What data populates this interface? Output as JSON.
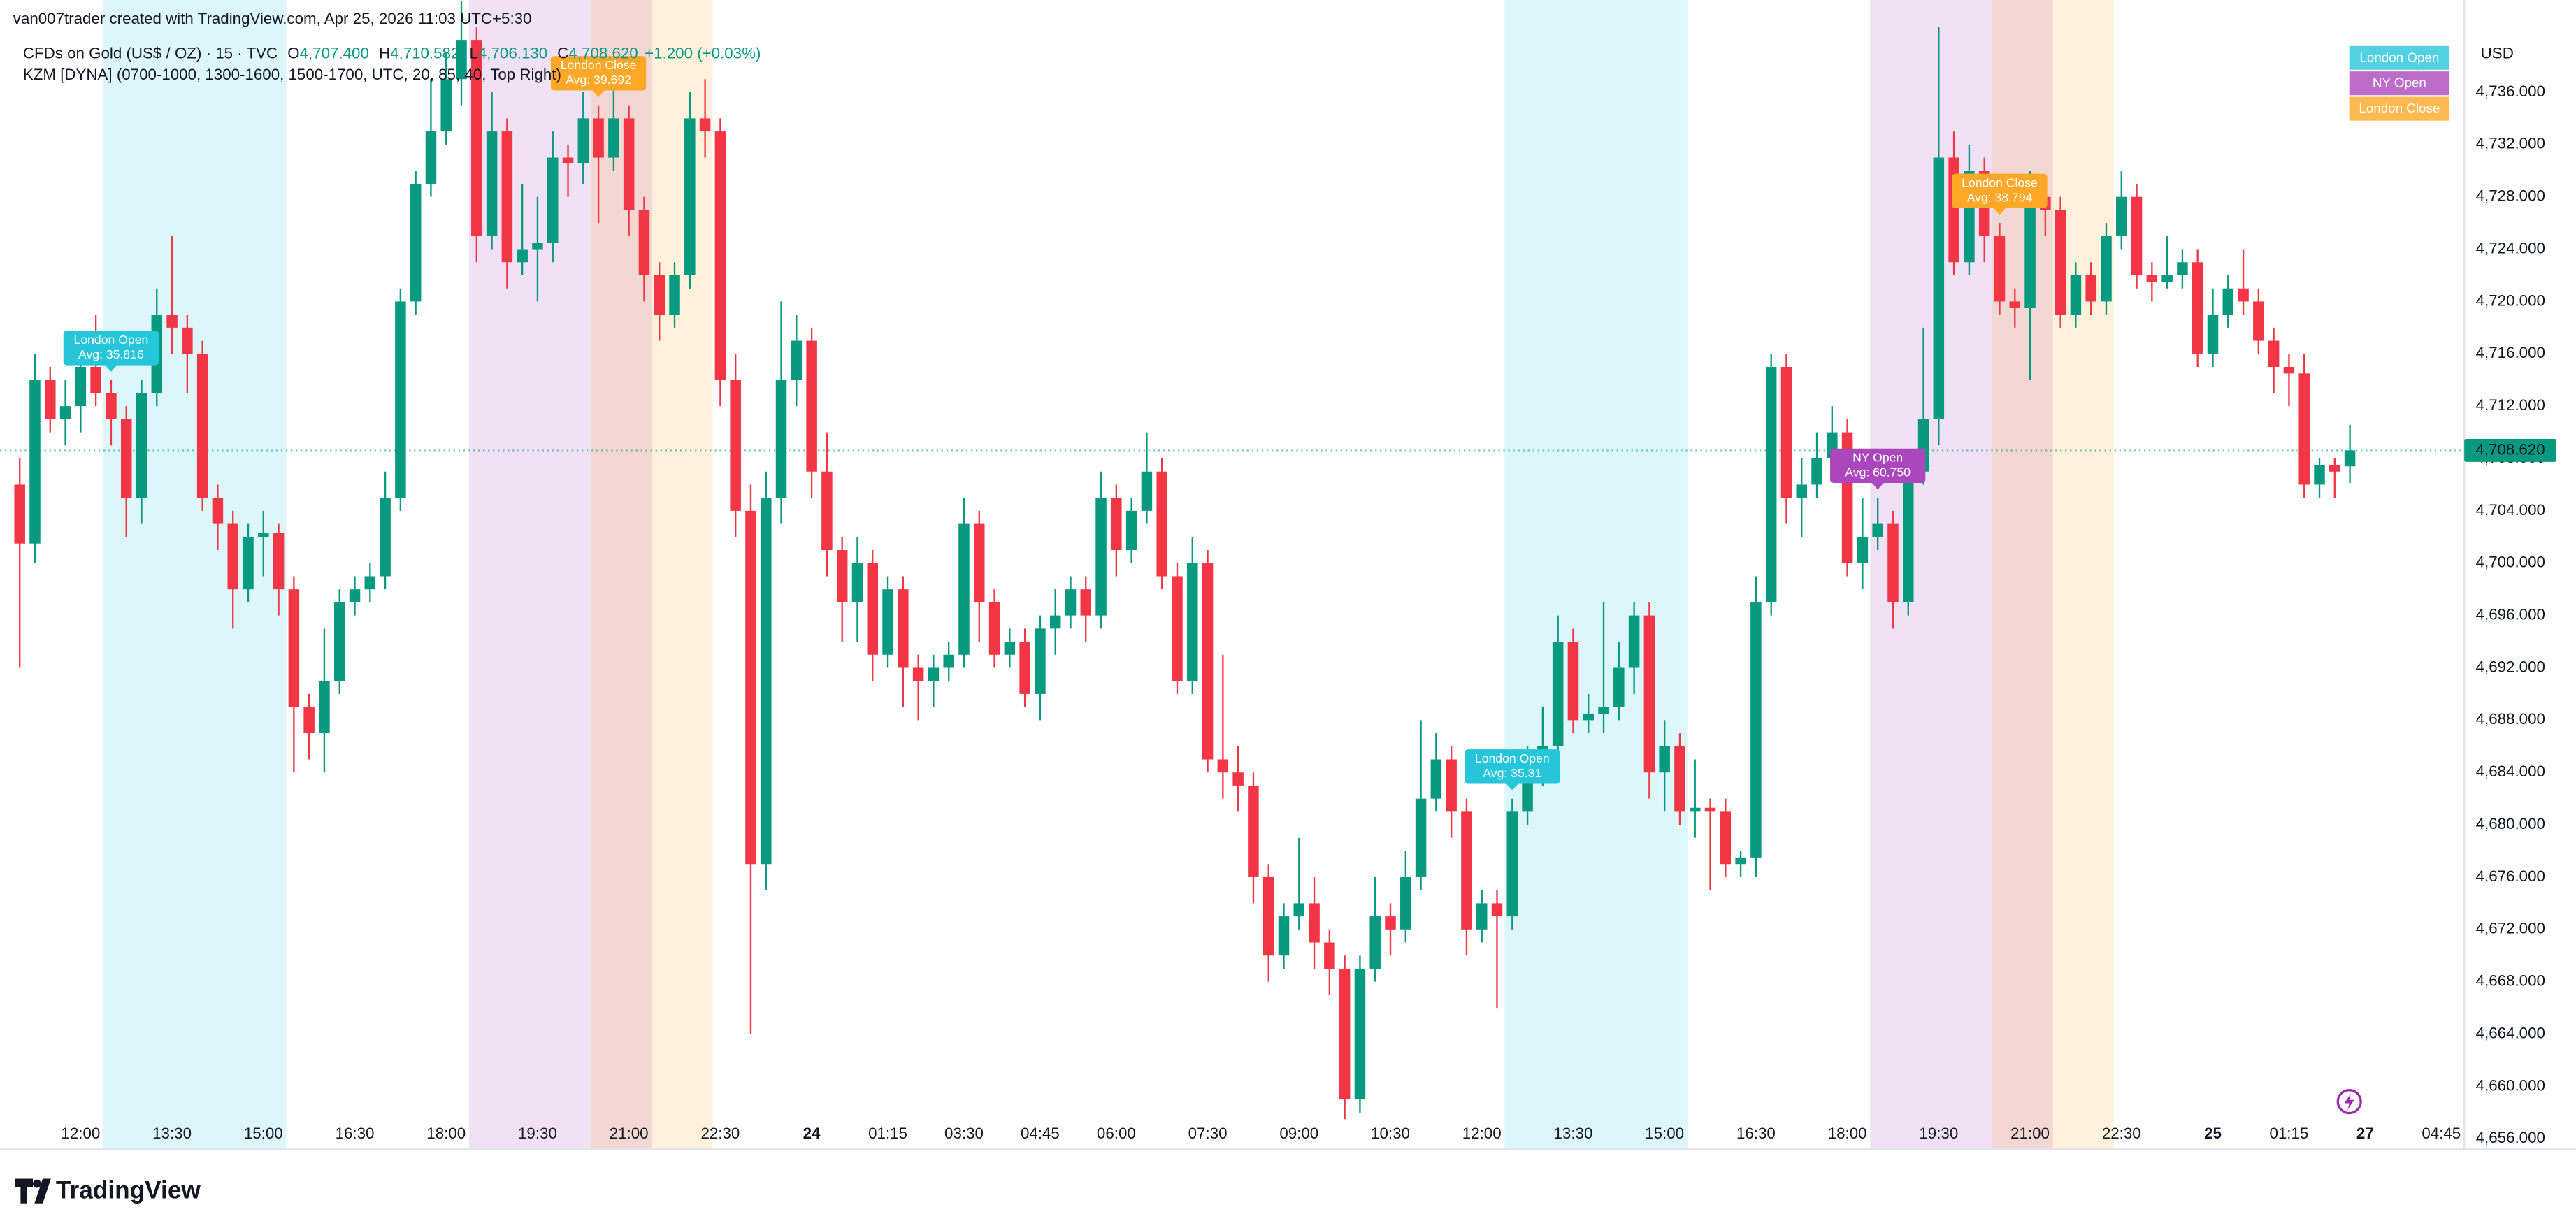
{
  "header": {
    "credit": "van007trader created with TradingView.com, Apr 25, 2026 11:03 UTC+5:30",
    "symbol": "CFDs on Gold (US$ / OZ) · 15 · TVC",
    "ohlc": [
      {
        "key": "O",
        "value": "4,707.400"
      },
      {
        "key": "H",
        "value": "4,710.582"
      },
      {
        "key": "L",
        "value": "4,706.130"
      },
      {
        "key": "C",
        "value": "4,708.620"
      }
    ],
    "change": "+1.200 (+0.03%)",
    "indicator": "KZM [DYNA] (0700-1000, 1300-1600, 1500-1700, UTC, 20, 85, 40, Top Right)",
    "currency": "USD",
    "brand": "TradingView"
  },
  "chart_data": {
    "type": "candlestick",
    "up_color": "#089981",
    "down_color": "#f23645",
    "grid": false,
    "categories": [
      null,
      null,
      null,
      null,
      "12:00",
      null,
      null,
      null,
      null,
      null,
      "13:30",
      null,
      null,
      null,
      null,
      null,
      "15:00",
      null,
      null,
      null,
      null,
      null,
      "16:30",
      null,
      null,
      null,
      null,
      null,
      "18:00",
      null,
      null,
      null,
      null,
      null,
      "19:30",
      null,
      null,
      null,
      null,
      null,
      "21:00",
      null,
      null,
      null,
      null,
      null,
      "22:30",
      null,
      null,
      null,
      null,
      null,
      "24",
      null,
      null,
      null,
      null,
      "01:15",
      null,
      null,
      null,
      null,
      "03:30",
      null,
      null,
      null,
      null,
      "04:45",
      null,
      null,
      null,
      null,
      "06:00",
      null,
      null,
      null,
      null,
      null,
      "07:30",
      null,
      null,
      null,
      null,
      null,
      "09:00",
      null,
      null,
      null,
      null,
      null,
      "10:30",
      null,
      null,
      null,
      null,
      null,
      "12:00",
      null,
      null,
      null,
      null,
      null,
      "13:30",
      null,
      null,
      null,
      null,
      null,
      "15:00",
      null,
      null,
      null,
      null,
      null,
      "16:30",
      null,
      null,
      null,
      null,
      null,
      "18:00",
      null,
      null,
      null,
      null,
      null,
      "19:30",
      null,
      null,
      null,
      null,
      null,
      "21:00",
      null,
      null,
      null,
      null,
      null,
      "22:30",
      null,
      null,
      null,
      null,
      null,
      "25",
      null,
      null,
      null,
      null,
      "01:15",
      null,
      null,
      null,
      null,
      "27",
      null,
      null,
      null,
      null,
      "04:45"
    ],
    "open": [
      4706,
      4701.5,
      4714,
      4711,
      4712,
      4715,
      4713,
      4711,
      4705,
      4713,
      4719,
      4718,
      4716,
      4705,
      4703,
      4698,
      4702,
      4702.3,
      4698,
      4689,
      4687,
      4691,
      4697,
      4698,
      4699,
      4705,
      4720,
      4729,
      4733,
      4737,
      4740,
      4725,
      4733,
      4723,
      4724,
      4724.5,
      4731,
      4730.6,
      4734,
      4731,
      4734,
      4727,
      4722,
      4719,
      4722,
      4734,
      4733,
      4714,
      4704,
      4677,
      4705,
      4714,
      4717,
      4707,
      4701,
      4697,
      4700,
      4693,
      4698,
      4692,
      4691,
      4692,
      4693,
      4703,
      4697,
      4693,
      4694,
      4690,
      4695,
      4696,
      4698,
      4696,
      4705,
      4701,
      4704,
      4707,
      4699,
      4691,
      4700,
      4685,
      4684,
      4683,
      4676,
      4670,
      4673,
      4674,
      4671,
      4669,
      4659,
      4669,
      4673,
      4672,
      4676,
      4682,
      4685,
      4681,
      4672,
      4674,
      4673,
      4681,
      4684,
      4686,
      4694,
      4688,
      4688.5,
      4689,
      4692,
      4696,
      4684,
      4686,
      4681,
      4681.3,
      4681,
      4677,
      4677.5,
      4697,
      4715,
      4705,
      4706,
      4708,
      4710,
      4700,
      4702,
      4703,
      4697,
      4707,
      4711,
      4731,
      4723,
      4730,
      4725,
      4720,
      4719.5,
      4728,
      4727,
      4719,
      4722,
      4720,
      4725,
      4728,
      4722,
      4721.5,
      4722,
      4723,
      4716,
      4719,
      4721,
      4720,
      4717,
      4715,
      4714.5,
      4706,
      4707.5,
      4707.4,
      null,
      null,
      null,
      null,
      null,
      null
    ],
    "high": [
      4708,
      4716,
      4715,
      4714,
      4717,
      4719,
      4714,
      4712,
      4714,
      4721,
      4725,
      4719,
      4717,
      4706,
      4704,
      4703,
      4704,
      4703,
      4699,
      4690,
      4695,
      4698,
      4699,
      4700,
      4707,
      4721,
      4730,
      4737,
      4739,
      4743,
      4741,
      4736,
      4734,
      4729,
      4728,
      4733,
      4732,
      4736,
      4735,
      4738,
      4735,
      4728,
      4723,
      4723,
      4736,
      4737,
      4734,
      4716,
      4706,
      4707,
      4720,
      4719,
      4718,
      4710,
      4702,
      4702,
      4701,
      4699,
      4699,
      4693,
      4693,
      4694,
      4705,
      4704,
      4698,
      4695,
      4695,
      4696,
      4698,
      4699,
      4699,
      4707,
      4706,
      4705,
      4710,
      4708,
      4700,
      4702,
      4701,
      4693,
      4686,
      4684,
      4677,
      4674,
      4679,
      4676,
      4672,
      4670,
      4670,
      4676,
      4674,
      4678,
      4688,
      4687,
      4686,
      4682,
      4675,
      4675,
      4682,
      4686,
      4689,
      4696,
      4695,
      4690,
      4697,
      4694,
      4697,
      4697,
      4688,
      4687,
      4685,
      4682,
      4682,
      4678,
      4699,
      4716,
      4716,
      4708,
      4710,
      4712,
      4711,
      4705,
      4705,
      4704,
      4708,
      4718,
      4741,
      4733,
      4732,
      4731,
      4726,
      4721,
      4730,
      4729,
      4728,
      4723,
      4723,
      4726,
      4730,
      4729,
      4723,
      4725,
      4724,
      4724,
      4721,
      4722,
      4724,
      4721,
      4718,
      4716,
      4716,
      4708,
      4708,
      4710.582,
      null,
      null,
      null,
      null,
      null,
      null
    ],
    "low": [
      4692,
      4700,
      4710,
      4709,
      4710,
      4712,
      4709,
      4702,
      4703,
      4712,
      4716,
      4713,
      4704,
      4701,
      4695,
      4697,
      4699,
      4696,
      4684,
      4685,
      4684,
      4690,
      4696,
      4697,
      4698,
      4704,
      4719,
      4728,
      4732,
      4735,
      4723,
      4724,
      4721,
      4722,
      4720,
      4723,
      4728,
      4729,
      4726,
      4730,
      4725,
      4720,
      4717,
      4718,
      4721,
      4731,
      4712,
      4702,
      4664,
      4675,
      4703,
      4712,
      4705,
      4699,
      4694,
      4694,
      4691,
      4692,
      4689,
      4688,
      4689,
      4691,
      4692,
      4694,
      4692,
      4692,
      4689,
      4688,
      4693,
      4695,
      4694,
      4695,
      4699,
      4700,
      4703,
      4698,
      4690,
      4690,
      4684,
      4682,
      4681,
      4674,
      4668,
      4669,
      4672,
      4669,
      4667,
      4657.5,
      4658,
      4668,
      4670,
      4671,
      4675,
      4681,
      4679,
      4670,
      4671,
      4666,
      4672,
      4680,
      4683,
      4685,
      4687,
      4687,
      4687,
      4688,
      4690,
      4682,
      4681,
      4680,
      4679,
      4675,
      4676,
      4676,
      4676,
      4696,
      4703,
      4702,
      4705,
      4707,
      4699,
      4698,
      4701,
      4695,
      4696,
      4706,
      4709,
      4722,
      4722,
      4723,
      4719,
      4718,
      4714,
      4725,
      4718,
      4718,
      4719,
      4719,
      4724,
      4721,
      4720,
      4721,
      4721,
      4715,
      4715,
      4718,
      4719,
      4716,
      4713,
      4712,
      4705,
      4705,
      4705,
      4706.13,
      null,
      null,
      null,
      null,
      null,
      null
    ],
    "close": [
      4701.5,
      4714,
      4711,
      4712,
      4715,
      4713,
      4711,
      4705,
      4713,
      4719,
      4718,
      4716,
      4705,
      4703,
      4698,
      4702,
      4702.3,
      4698,
      4689,
      4687,
      4691,
      4697,
      4698,
      4699,
      4705,
      4720,
      4729,
      4733,
      4737,
      4740,
      4725,
      4733,
      4723,
      4724,
      4724.5,
      4731,
      4730.6,
      4734,
      4731,
      4734,
      4727,
      4722,
      4719,
      4722,
      4734,
      4733,
      4714,
      4704,
      4677,
      4705,
      4714,
      4717,
      4707,
      4701,
      4697,
      4700,
      4693,
      4698,
      4692,
      4691,
      4692,
      4693,
      4703,
      4697,
      4693,
      4694,
      4690,
      4695,
      4696,
      4698,
      4696,
      4705,
      4701,
      4704,
      4707,
      4699,
      4691,
      4700,
      4685,
      4684,
      4683,
      4676,
      4670,
      4673,
      4674,
      4671,
      4669,
      4659,
      4669,
      4673,
      4672,
      4676,
      4682,
      4685,
      4681,
      4672,
      4674,
      4673,
      4681,
      4684,
      4686,
      4694,
      4688,
      4688.5,
      4689,
      4692,
      4696,
      4684,
      4686,
      4681,
      4681.3,
      4681,
      4677,
      4677.5,
      4697,
      4715,
      4705,
      4706,
      4708,
      4710,
      4700,
      4702,
      4703,
      4697,
      4707,
      4711,
      4731,
      4723,
      4730,
      4725,
      4720,
      4719.5,
      4728,
      4727,
      4719,
      4722,
      4720,
      4725,
      4728,
      4722,
      4721.5,
      4722,
      4723,
      4716,
      4719,
      4721,
      4720,
      4717,
      4715,
      4714.5,
      4706,
      4707.5,
      4707,
      4708.62,
      null,
      null,
      null,
      null,
      null,
      null
    ],
    "ylim": [
      4655.2,
      4743.05
    ],
    "yticks": [
      {
        "value": 4656,
        "label": "4,656.000"
      },
      {
        "value": 4660,
        "label": "4,660.000"
      },
      {
        "value": 4664,
        "label": "4,664.000"
      },
      {
        "value": 4668,
        "label": "4,668.000"
      },
      {
        "value": 4672,
        "label": "4,672.000"
      },
      {
        "value": 4676,
        "label": "4,676.000"
      },
      {
        "value": 4680,
        "label": "4,680.000"
      },
      {
        "value": 4684,
        "label": "4,684.000"
      },
      {
        "value": 4688,
        "label": "4,688.000"
      },
      {
        "value": 4692,
        "label": "4,692.000"
      },
      {
        "value": 4696,
        "label": "4,696.000"
      },
      {
        "value": 4700,
        "label": "4,700.000"
      },
      {
        "value": 4704,
        "label": "4,704.000"
      },
      {
        "value": 4708,
        "label": "4,708.000"
      },
      {
        "value": 4712,
        "label": "4,712.000"
      },
      {
        "value": 4716,
        "label": "4,716.000"
      },
      {
        "value": 4720,
        "label": "4,720.000"
      },
      {
        "value": 4724,
        "label": "4,724.000"
      },
      {
        "value": 4728,
        "label": "4,728.000"
      },
      {
        "value": 4732,
        "label": "4,732.000"
      },
      {
        "value": 4736,
        "label": "4,736.000"
      }
    ],
    "last_price": {
      "value": 4708.62,
      "label": "4,708.620"
    },
    "legend_position": "top-right",
    "legend": [
      {
        "name": "London Open",
        "color": "#26c6da"
      },
      {
        "name": "NY Open",
        "color": "#ab47bc"
      },
      {
        "name": "London Close",
        "color": "#ffa726"
      }
    ],
    "sessions": [
      {
        "kind": 0,
        "start": 6,
        "end": 18,
        "label": "Avg: 35.816"
      },
      {
        "kind": 1,
        "start": 30,
        "end": 42
      },
      {
        "kind": 2,
        "start": 38,
        "end": 46,
        "label": "Avg: 39.692"
      },
      {
        "kind": 0,
        "start": 98,
        "end": 110,
        "label": "Avg: 35.31"
      },
      {
        "kind": 1,
        "start": 122,
        "end": 134,
        "label": "Avg: 60.750"
      },
      {
        "kind": 2,
        "start": 130,
        "end": 138,
        "label": "Avg: 38.794"
      }
    ]
  }
}
